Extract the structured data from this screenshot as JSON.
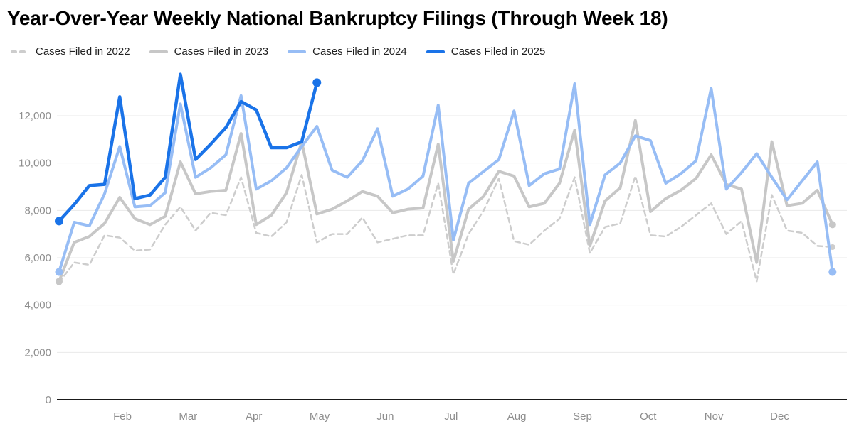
{
  "title": "Year-Over-Year Weekly National Bankruptcy Filings (Through Week 18)",
  "legend": [
    {
      "label": "Cases Filed in 2022",
      "color": "#cdcdcd",
      "dashed": true
    },
    {
      "label": "Cases Filed in 2023",
      "color": "#c7c7c7",
      "dashed": false
    },
    {
      "label": "Cases Filed in 2024",
      "color": "#97bdf5",
      "dashed": false
    },
    {
      "label": "Cases Filed in 2025",
      "color": "#1a73e8",
      "dashed": false
    }
  ],
  "colors": {
    "background": "#ffffff",
    "gridline": "#e9e9e9",
    "zero_line": "#1a1a1a",
    "axis_label": "#8e8e8e"
  },
  "chart_data": {
    "type": "line",
    "title": "Year-Over-Year Weekly National Bankruptcy Filings (Through Week 18)",
    "x_unit": "week of year (1-52)",
    "xlabel": "",
    "ylabel": "",
    "ylim": [
      0,
      14000
    ],
    "grid": "horizontal",
    "legend_position": "top",
    "y_ticks": [
      {
        "value": 0,
        "label": "0"
      },
      {
        "value": 2000,
        "label": "2,000"
      },
      {
        "value": 4000,
        "label": "4,000"
      },
      {
        "value": 6000,
        "label": "6,000"
      },
      {
        "value": 8000,
        "label": "8,000"
      },
      {
        "value": 10000,
        "label": "10,000"
      },
      {
        "value": 12000,
        "label": "12,000"
      }
    ],
    "months": [
      "Feb",
      "Mar",
      "Apr",
      "May",
      "Jun",
      "Jul",
      "Aug",
      "Sep",
      "Oct",
      "Nov",
      "Dec"
    ],
    "series": [
      {
        "name": "Cases Filed in 2022",
        "color": "#cdcdcd",
        "dashed": true,
        "width": 2.5,
        "dot_radius": 4,
        "values": [
          4950,
          5800,
          5700,
          6950,
          6850,
          6300,
          6350,
          7400,
          8150,
          7150,
          7900,
          7800,
          9400,
          7050,
          6900,
          7500,
          9500,
          6650,
          7000,
          7000,
          7700,
          6650,
          6800,
          6950,
          6950,
          9150,
          5300,
          7000,
          8000,
          9350,
          6700,
          6550,
          7150,
          7650,
          9400,
          6200,
          7300,
          7450,
          9450,
          6950,
          6900,
          7300,
          7800,
          8300,
          7000,
          7550,
          5000,
          8650,
          7150,
          7050,
          6500,
          6450
        ]
      },
      {
        "name": "Cases Filed in 2023",
        "color": "#c7c7c7",
        "dashed": false,
        "width": 4,
        "dot_radius": 5,
        "values": [
          5000,
          6650,
          6900,
          7450,
          8550,
          7650,
          7400,
          7750,
          10050,
          8700,
          8800,
          8850,
          11250,
          7400,
          7800,
          8750,
          10900,
          7850,
          8050,
          8400,
          8800,
          8600,
          7900,
          8050,
          8100,
          10800,
          5850,
          8050,
          8600,
          9650,
          9450,
          8150,
          8300,
          9150,
          11400,
          6500,
          8400,
          8950,
          11800,
          7950,
          8500,
          8850,
          9350,
          10350,
          9100,
          8900,
          5800,
          10900,
          8200,
          8300,
          8850,
          7400
        ]
      },
      {
        "name": "Cases Filed in 2024",
        "color": "#97bdf5",
        "dashed": false,
        "width": 4,
        "dot_radius": 5.5,
        "values": [
          5400,
          7500,
          7350,
          8700,
          10700,
          8150,
          8200,
          8750,
          12500,
          9400,
          9800,
          10350,
          12850,
          8900,
          9250,
          9800,
          10700,
          11550,
          9700,
          9400,
          10100,
          11450,
          8600,
          8900,
          9450,
          12450,
          6750,
          9150,
          9650,
          10150,
          12200,
          9050,
          9550,
          9750,
          13350,
          7400,
          9500,
          10000,
          11150,
          10950,
          9150,
          9550,
          10100,
          13150,
          8900,
          9600,
          10400,
          9400,
          8450,
          9250,
          10050,
          5400
        ]
      },
      {
        "name": "Cases Filed in 2025",
        "color": "#1a73e8",
        "dashed": false,
        "width": 4.5,
        "dot_radius": 6,
        "values": [
          7550,
          8250,
          9050,
          9100,
          12800,
          8500,
          8650,
          9400,
          13750,
          10150,
          10800,
          11500,
          12600,
          12250,
          10650,
          10650,
          10900,
          13400
        ]
      }
    ]
  }
}
